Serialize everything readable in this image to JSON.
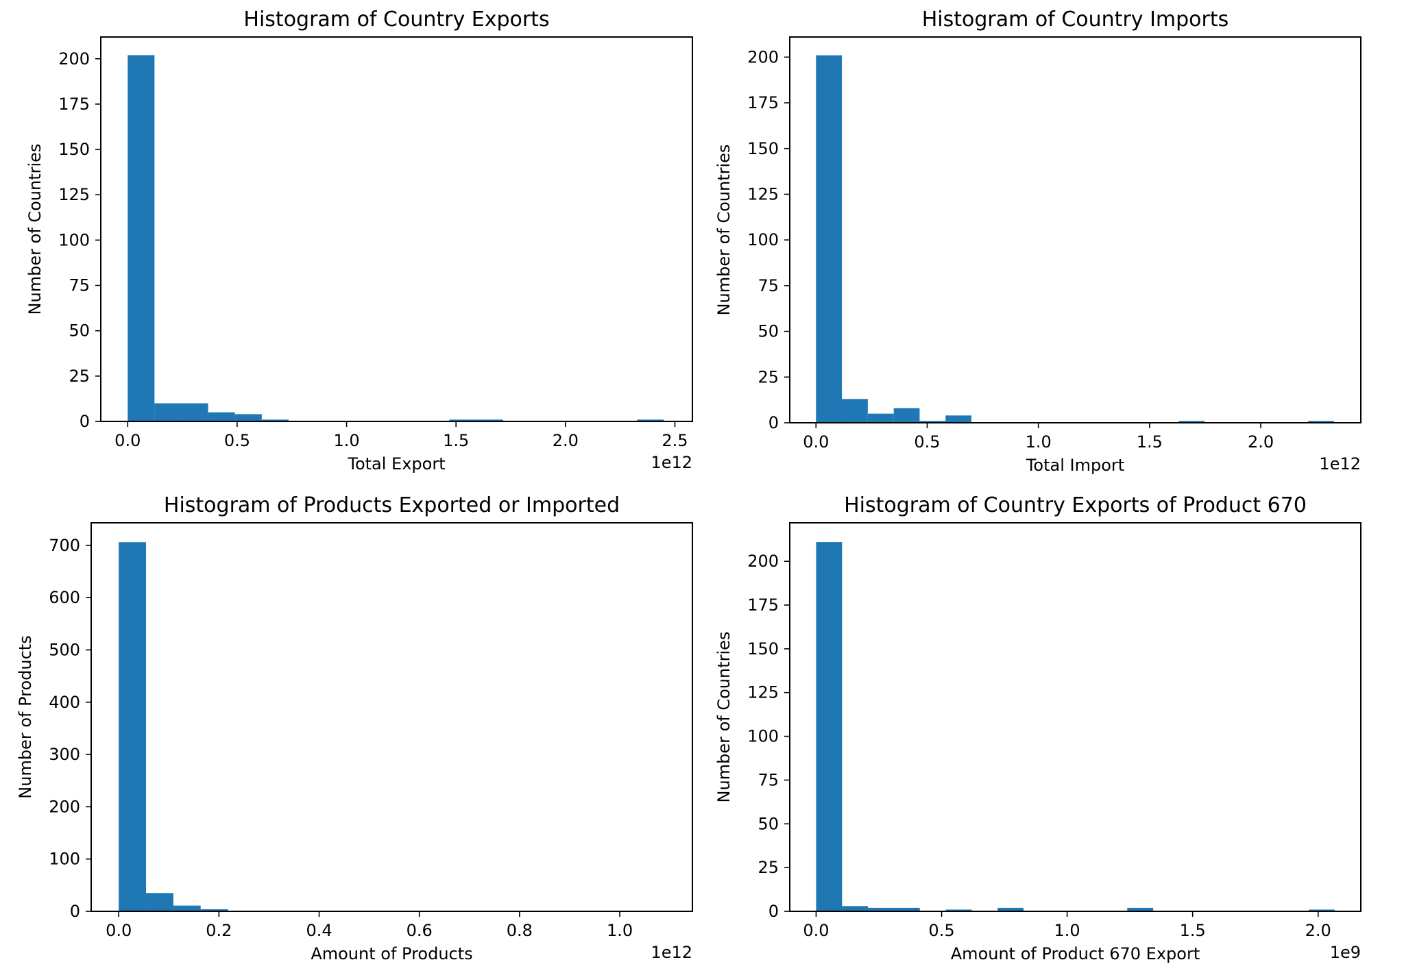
{
  "chart_data": [
    {
      "type": "bar",
      "title": "Histogram of Country Exports",
      "xlabel": "Total Export",
      "ylabel": "Number of Countries",
      "offset_label": "1e12",
      "xlim": [
        -0.123,
        2.58
      ],
      "ylim": [
        0,
        212
      ],
      "xticks": [
        0,
        0.5,
        1.0,
        1.5,
        2.0,
        2.5
      ],
      "xtick_labels": [
        "0.0",
        "0.5",
        "1.0",
        "1.5",
        "2.0",
        "2.5"
      ],
      "yticks": [
        0,
        25,
        50,
        75,
        100,
        125,
        150,
        175,
        200
      ],
      "ytick_labels": [
        "0",
        "25",
        "50",
        "75",
        "100",
        "125",
        "150",
        "175",
        "200"
      ],
      "bin_start": 0,
      "bin_width": 0.1225,
      "values": [
        202,
        10,
        10,
        5,
        4,
        1,
        0,
        0,
        0,
        0,
        0,
        0,
        1,
        1,
        0,
        0,
        0,
        0,
        0,
        1
      ],
      "color": "#1f77b4",
      "grid": false
    },
    {
      "type": "bar",
      "title": "Histogram of Country Imports",
      "xlabel": "Total Import",
      "ylabel": "Number of Countries",
      "offset_label": "1e12",
      "xlim": [
        -0.118,
        2.45
      ],
      "ylim": [
        0,
        211
      ],
      "xticks": [
        0,
        0.5,
        1.0,
        1.5,
        2.0
      ],
      "xtick_labels": [
        "0.0",
        "0.5",
        "1.0",
        "1.5",
        "2.0"
      ],
      "yticks": [
        0,
        25,
        50,
        75,
        100,
        125,
        150,
        175,
        200
      ],
      "ytick_labels": [
        "0",
        "25",
        "50",
        "75",
        "100",
        "125",
        "150",
        "175",
        "200"
      ],
      "bin_start": 0,
      "bin_width": 0.1165,
      "values": [
        201,
        13,
        5,
        8,
        1,
        4,
        0,
        0,
        0,
        0,
        0,
        0,
        0,
        0,
        1,
        0,
        0,
        0,
        0,
        1
      ],
      "color": "#1f77b4",
      "grid": false
    },
    {
      "type": "bar",
      "title": "Histogram of Products Exported or Imported",
      "xlabel": "Amount of Products",
      "ylabel": "Number of Products",
      "offset_label": "1e12",
      "xlim": [
        -0.055,
        1.145
      ],
      "ylim": [
        0,
        743
      ],
      "xticks": [
        0,
        0.2,
        0.4,
        0.6,
        0.8,
        1.0
      ],
      "xtick_labels": [
        "0.0",
        "0.2",
        "0.4",
        "0.6",
        "0.8",
        "1.0"
      ],
      "yticks": [
        0,
        100,
        200,
        300,
        400,
        500,
        600,
        700
      ],
      "ytick_labels": [
        "0",
        "100",
        "200",
        "300",
        "400",
        "500",
        "600",
        "700"
      ],
      "bin_start": 0,
      "bin_width": 0.0545,
      "values": [
        706,
        35,
        11,
        4,
        0,
        0,
        1,
        0,
        0,
        0,
        0,
        0,
        0,
        1,
        0,
        0,
        0,
        0,
        0,
        1
      ],
      "color": "#1f77b4",
      "grid": false
    },
    {
      "type": "bar",
      "title": "Histogram of Country Exports of Product 670",
      "xlabel": "Amount of Product 670 Export",
      "ylabel": "Number of Countries",
      "offset_label": "1e9",
      "xlim": [
        -0.105,
        2.17
      ],
      "ylim": [
        0,
        222
      ],
      "xticks": [
        0,
        0.5,
        1.0,
        1.5,
        2.0
      ],
      "xtick_labels": [
        "0.0",
        "0.5",
        "1.0",
        "1.5",
        "2.0"
      ],
      "yticks": [
        0,
        25,
        50,
        75,
        100,
        125,
        150,
        175,
        200
      ],
      "ytick_labels": [
        "0",
        "25",
        "50",
        "75",
        "100",
        "125",
        "150",
        "175",
        "200"
      ],
      "bin_start": 0,
      "bin_width": 0.1033,
      "values": [
        211,
        3,
        2,
        2,
        0,
        1,
        0,
        2,
        0,
        0,
        0,
        0,
        2,
        0,
        0,
        0,
        0,
        0,
        0,
        1
      ],
      "color": "#1f77b4",
      "grid": false
    }
  ]
}
